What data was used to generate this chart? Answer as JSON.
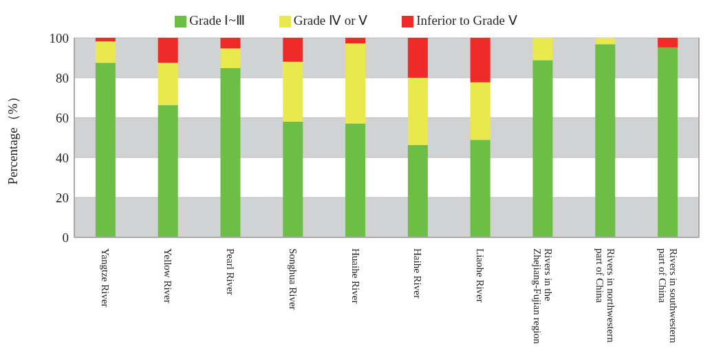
{
  "chart_data": {
    "type": "bar",
    "stacked": true,
    "ylabel": "Percentage（%）",
    "categories": [
      "Yangtze River",
      "Yellow River",
      "Pearl River",
      "Songhua River",
      "Huaihe River",
      "Haihe River",
      "Liaohe River",
      "Rivers in the Zhejiang-Fujian region",
      "Rivers in northwestern part of China",
      "Rivers in southwestern part of China"
    ],
    "series": [
      {
        "name": "Grade Ⅰ~Ⅲ",
        "color": "#6dbe45",
        "values": [
          87.5,
          66.4,
          84.8,
          57.9,
          57.1,
          46.3,
          48.9,
          88.8,
          96.8,
          95.2
        ]
      },
      {
        "name": "Grade Ⅳ or Ⅴ",
        "color": "#e9e84c",
        "values": [
          10.7,
          21.1,
          9.9,
          30.1,
          40.1,
          33.7,
          28.8,
          11.2,
          3.2,
          0
        ]
      },
      {
        "name": "Inferior to Grade Ⅴ",
        "color": "#ee2b29",
        "values": [
          1.8,
          12.5,
          5.3,
          12.0,
          2.8,
          20.0,
          22.3,
          0,
          0,
          4.8
        ]
      }
    ],
    "ylim": [
      0,
      100
    ],
    "yticks": [
      0,
      20,
      40,
      60,
      80,
      100
    ],
    "grid": "y",
    "legend": "top"
  }
}
